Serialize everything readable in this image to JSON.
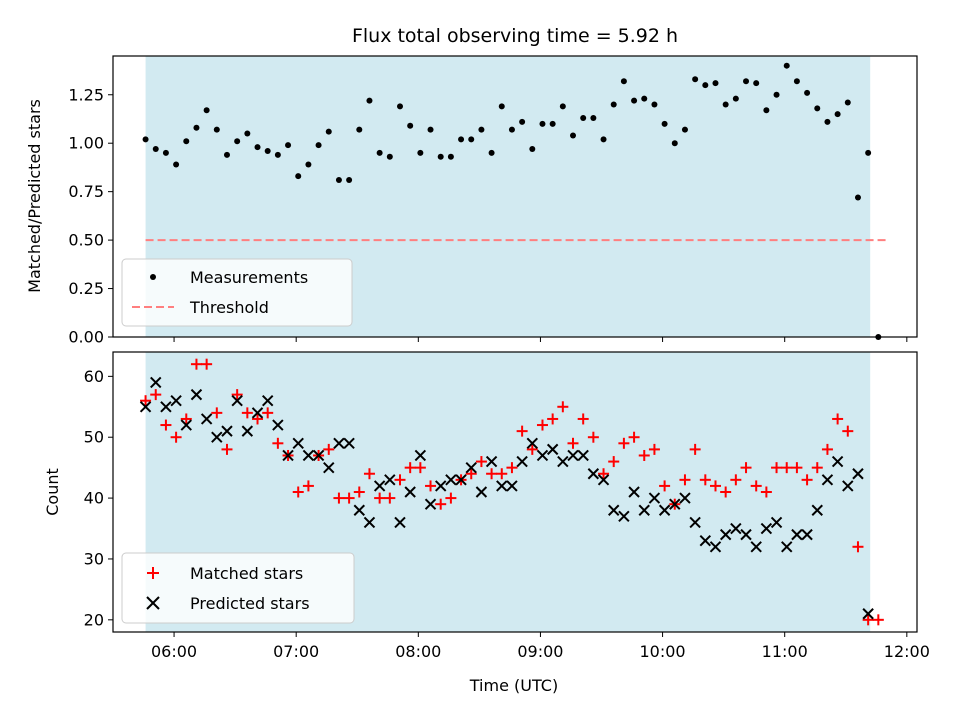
{
  "title": "Flux total observing time = 5.92 h",
  "colors": {
    "observing_band": "#add8e6",
    "measurement": "#000000",
    "threshold": "#ff7f7f",
    "matched": "#ff0000",
    "predicted": "#000000"
  },
  "chart_data": [
    {
      "type": "scatter",
      "title": "Flux total observing time = 5.92 h",
      "xlabel": "",
      "ylabel": "Matched/Predicted stars",
      "ylim": [
        0,
        1.45
      ],
      "yticks": [
        0,
        0.25,
        0.5,
        0.75,
        1.0,
        1.25
      ],
      "ytick_labels": [
        "0.00",
        "0.25",
        "0.50",
        "0.75",
        "1.00",
        "1.25"
      ],
      "xlim": [
        "05:30",
        "12:05"
      ],
      "xticks": [
        "06:00",
        "07:00",
        "08:00",
        "09:00",
        "10:00",
        "11:00",
        "12:00"
      ],
      "observing_band": [
        "05:46",
        "11:42"
      ],
      "threshold": {
        "y": 0.5,
        "x": [
          "05:46",
          "11:50"
        ]
      },
      "legend": {
        "placement": "lower-left",
        "entries": [
          "Measurements",
          "Threshold"
        ]
      },
      "series": [
        {
          "name": "Measurements",
          "marker": "dot",
          "x": [
            "05:46",
            "05:51",
            "05:56",
            "06:01",
            "06:06",
            "06:11",
            "06:16",
            "06:21",
            "06:26",
            "06:31",
            "06:36",
            "06:41",
            "06:46",
            "06:51",
            "06:56",
            "07:01",
            "07:06",
            "07:11",
            "07:16",
            "07:21",
            "07:26",
            "07:31",
            "07:36",
            "07:41",
            "07:46",
            "07:51",
            "07:56",
            "08:01",
            "08:06",
            "08:11",
            "08:16",
            "08:21",
            "08:26",
            "08:31",
            "08:36",
            "08:41",
            "08:46",
            "08:51",
            "08:56",
            "09:01",
            "09:06",
            "09:11",
            "09:16",
            "09:21",
            "09:26",
            "09:31",
            "09:36",
            "09:41",
            "09:46",
            "09:51",
            "09:56",
            "10:01",
            "10:06",
            "10:11",
            "10:16",
            "10:21",
            "10:26",
            "10:31",
            "10:36",
            "10:41",
            "10:46",
            "10:51",
            "10:56",
            "11:01",
            "11:06",
            "11:11",
            "11:16",
            "11:21",
            "11:26",
            "11:31",
            "11:36",
            "11:41",
            "11:46"
          ],
          "y": [
            1.02,
            0.97,
            0.95,
            0.89,
            1.01,
            1.08,
            1.17,
            1.07,
            0.94,
            1.01,
            1.05,
            0.98,
            0.96,
            0.94,
            0.99,
            0.83,
            0.89,
            0.99,
            1.06,
            0.81,
            0.81,
            1.07,
            1.22,
            0.95,
            0.93,
            1.19,
            1.09,
            0.95,
            1.07,
            0.93,
            0.93,
            1.02,
            1.02,
            1.07,
            0.95,
            1.19,
            1.07,
            1.11,
            0.97,
            1.1,
            1.1,
            1.19,
            1.04,
            1.13,
            1.13,
            1.02,
            1.2,
            1.32,
            1.22,
            1.23,
            1.2,
            1.1,
            1.0,
            1.07,
            1.33,
            1.3,
            1.31,
            1.2,
            1.23,
            1.32,
            1.31,
            1.17,
            1.25,
            1.4,
            1.32,
            1.26,
            1.18,
            1.11,
            1.15,
            1.21,
            0.72,
            0.95,
            0.0
          ]
        }
      ]
    },
    {
      "type": "scatter",
      "title": "",
      "xlabel": "Time (UTC)",
      "ylabel": "Count",
      "ylim": [
        18,
        64
      ],
      "yticks": [
        20,
        30,
        40,
        50,
        60
      ],
      "ytick_labels": [
        "20",
        "30",
        "40",
        "50",
        "60"
      ],
      "xlim": [
        "05:30",
        "12:05"
      ],
      "xticks": [
        "06:00",
        "07:00",
        "08:00",
        "09:00",
        "10:00",
        "11:00",
        "12:00"
      ],
      "xtick_labels": [
        "06:00",
        "07:00",
        "08:00",
        "09:00",
        "10:00",
        "11:00",
        "12:00"
      ],
      "observing_band": [
        "05:46",
        "11:42"
      ],
      "legend": {
        "placement": "lower-left",
        "entries": [
          "Matched stars",
          "Predicted stars"
        ]
      },
      "series": [
        {
          "name": "Matched stars",
          "marker": "plus",
          "x": [
            "05:46",
            "05:51",
            "05:56",
            "06:01",
            "06:06",
            "06:11",
            "06:16",
            "06:21",
            "06:26",
            "06:31",
            "06:36",
            "06:41",
            "06:46",
            "06:51",
            "06:56",
            "07:01",
            "07:06",
            "07:11",
            "07:16",
            "07:21",
            "07:26",
            "07:31",
            "07:36",
            "07:41",
            "07:46",
            "07:51",
            "07:56",
            "08:01",
            "08:06",
            "08:11",
            "08:16",
            "08:21",
            "08:26",
            "08:31",
            "08:36",
            "08:41",
            "08:46",
            "08:51",
            "08:56",
            "09:01",
            "09:06",
            "09:11",
            "09:16",
            "09:21",
            "09:26",
            "09:31",
            "09:36",
            "09:41",
            "09:46",
            "09:51",
            "09:56",
            "10:01",
            "10:06",
            "10:11",
            "10:16",
            "10:21",
            "10:26",
            "10:31",
            "10:36",
            "10:41",
            "10:46",
            "10:51",
            "10:56",
            "11:01",
            "11:06",
            "11:11",
            "11:16",
            "11:21",
            "11:26",
            "11:31",
            "11:36",
            "11:41",
            "11:46"
          ],
          "y": [
            56,
            57,
            52,
            50,
            53,
            62,
            62,
            54,
            48,
            57,
            54,
            53,
            54,
            49,
            47,
            41,
            42,
            47,
            48,
            40,
            40,
            41,
            44,
            40,
            40,
            43,
            45,
            45,
            42,
            39,
            40,
            43,
            44,
            46,
            44,
            44,
            45,
            51,
            48,
            52,
            53,
            55,
            49,
            53,
            50,
            44,
            46,
            49,
            50,
            47,
            48,
            42,
            39,
            43,
            48,
            43,
            42,
            41,
            43,
            45,
            42,
            41,
            45,
            45,
            45,
            43,
            45,
            48,
            53,
            51,
            32,
            20,
            20
          ]
        },
        {
          "name": "Predicted stars",
          "marker": "x",
          "x": [
            "05:46",
            "05:51",
            "05:56",
            "06:01",
            "06:06",
            "06:11",
            "06:16",
            "06:21",
            "06:26",
            "06:31",
            "06:36",
            "06:41",
            "06:46",
            "06:51",
            "06:56",
            "07:01",
            "07:06",
            "07:11",
            "07:16",
            "07:21",
            "07:26",
            "07:31",
            "07:36",
            "07:41",
            "07:46",
            "07:51",
            "07:56",
            "08:01",
            "08:06",
            "08:11",
            "08:16",
            "08:21",
            "08:26",
            "08:31",
            "08:36",
            "08:41",
            "08:46",
            "08:51",
            "08:56",
            "09:01",
            "09:06",
            "09:11",
            "09:16",
            "09:21",
            "09:26",
            "09:31",
            "09:36",
            "09:41",
            "09:46",
            "09:51",
            "09:56",
            "10:01",
            "10:06",
            "10:11",
            "10:16",
            "10:21",
            "10:26",
            "10:31",
            "10:36",
            "10:41",
            "10:46",
            "10:51",
            "10:56",
            "11:01",
            "11:06",
            "11:11",
            "11:16",
            "11:21",
            "11:26",
            "11:31",
            "11:36",
            "11:41"
          ],
          "y": [
            55,
            59,
            55,
            56,
            52,
            57,
            53,
            50,
            51,
            56,
            51,
            54,
            56,
            52,
            47,
            49,
            47,
            47,
            45,
            49,
            49,
            38,
            36,
            42,
            43,
            36,
            41,
            47,
            39,
            42,
            43,
            43,
            45,
            41,
            46,
            42,
            42,
            46,
            49,
            47,
            48,
            46,
            47,
            47,
            44,
            43,
            38,
            37,
            41,
            38,
            40,
            38,
            39,
            40,
            36,
            33,
            32,
            34,
            35,
            34,
            32,
            35,
            36,
            32,
            34,
            34,
            38,
            43,
            46,
            42,
            44,
            21
          ]
        }
      ]
    }
  ]
}
